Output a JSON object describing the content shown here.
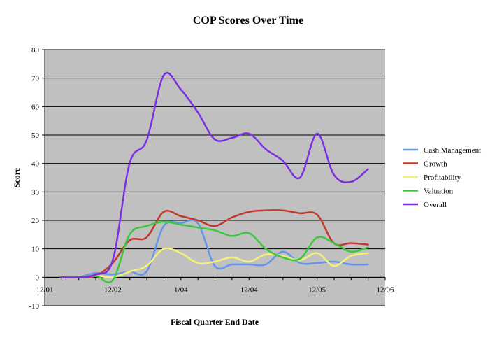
{
  "chart_data": {
    "type": "line",
    "title": "COP Scores Over Time",
    "xlabel": "Fiscal Quarter End Date",
    "ylabel": "Score",
    "x_ticks": [
      "12/01",
      "12/02",
      "1/04",
      "12/04",
      "12/05",
      "12/06"
    ],
    "ylim": [
      -10,
      80
    ],
    "y_ticks": [
      "-10",
      "0",
      "10",
      "20",
      "30",
      "40",
      "50",
      "60",
      "70",
      "80"
    ],
    "grid": true,
    "plot_background": "#c0c0c0",
    "legend": "right",
    "series": [
      {
        "name": "Cash Management",
        "color": "#6495ed",
        "points": [
          [
            "2002-03-31",
            0
          ],
          [
            "2002-06-30",
            0
          ],
          [
            "2002-09-30",
            1.5
          ],
          [
            "2002-12-31",
            1
          ],
          [
            "2003-03-31",
            2
          ],
          [
            "2003-06-30",
            2
          ],
          [
            "2003-09-30",
            18
          ],
          [
            "2003-12-31",
            19
          ],
          [
            "2004-03-31",
            19
          ],
          [
            "2004-06-30",
            4
          ],
          [
            "2004-09-30",
            4.5
          ],
          [
            "2004-12-31",
            4.5
          ],
          [
            "2005-03-31",
            4.5
          ],
          [
            "2005-06-30",
            9
          ],
          [
            "2005-09-30",
            5
          ],
          [
            "2005-12-31",
            5
          ],
          [
            "2006-03-31",
            5.5
          ],
          [
            "2006-06-30",
            4.5
          ],
          [
            "2006-09-30",
            4.5
          ]
        ]
      },
      {
        "name": "Growth",
        "color": "#c0392b",
        "points": [
          [
            "2002-03-31",
            0
          ],
          [
            "2002-06-30",
            0
          ],
          [
            "2002-09-30",
            0.5
          ],
          [
            "2002-12-31",
            5
          ],
          [
            "2003-03-31",
            13
          ],
          [
            "2003-06-30",
            14
          ],
          [
            "2003-09-30",
            23
          ],
          [
            "2003-12-31",
            21.5
          ],
          [
            "2004-03-31",
            20
          ],
          [
            "2004-06-30",
            18
          ],
          [
            "2004-09-30",
            21
          ],
          [
            "2004-12-31",
            23
          ],
          [
            "2005-03-31",
            23.5
          ],
          [
            "2005-06-30",
            23.5
          ],
          [
            "2005-09-30",
            22.5
          ],
          [
            "2005-12-31",
            22
          ],
          [
            "2006-03-31",
            12
          ],
          [
            "2006-06-30",
            12
          ],
          [
            "2006-09-30",
            11.5
          ]
        ]
      },
      {
        "name": "Profitability",
        "color": "#f5f07a",
        "points": [
          [
            "2002-03-31",
            0
          ],
          [
            "2002-06-30",
            0
          ],
          [
            "2002-09-30",
            0.5
          ],
          [
            "2002-12-31",
            0
          ],
          [
            "2003-03-31",
            2
          ],
          [
            "2003-06-30",
            4
          ],
          [
            "2003-09-30",
            10
          ],
          [
            "2003-12-31",
            8.5
          ],
          [
            "2004-03-31",
            5
          ],
          [
            "2004-06-30",
            5.5
          ],
          [
            "2004-09-30",
            7
          ],
          [
            "2004-12-31",
            5.5
          ],
          [
            "2005-03-31",
            8
          ],
          [
            "2005-06-30",
            7.5
          ],
          [
            "2005-09-30",
            6
          ],
          [
            "2005-12-31",
            8.5
          ],
          [
            "2006-03-31",
            4
          ],
          [
            "2006-06-30",
            7.5
          ],
          [
            "2006-09-30",
            8.5
          ]
        ]
      },
      {
        "name": "Valuation",
        "color": "#3cc83c",
        "points": [
          [
            "2002-03-31",
            0
          ],
          [
            "2002-06-30",
            0
          ],
          [
            "2002-09-30",
            0.5
          ],
          [
            "2002-12-31",
            -1
          ],
          [
            "2003-03-31",
            15
          ],
          [
            "2003-06-30",
            18
          ],
          [
            "2003-09-30",
            19.5
          ],
          [
            "2003-12-31",
            18.5
          ],
          [
            "2004-03-31",
            17.5
          ],
          [
            "2004-06-30",
            16.5
          ],
          [
            "2004-09-30",
            14.5
          ],
          [
            "2004-12-31",
            15.5
          ],
          [
            "2005-03-31",
            10
          ],
          [
            "2005-06-30",
            7
          ],
          [
            "2005-09-30",
            6.5
          ],
          [
            "2005-12-31",
            14
          ],
          [
            "2006-03-31",
            12
          ],
          [
            "2006-06-30",
            9
          ],
          [
            "2006-09-30",
            10.5
          ]
        ]
      },
      {
        "name": "Overall",
        "color": "#7b2fe0",
        "points": [
          [
            "2002-03-31",
            0
          ],
          [
            "2002-06-30",
            0
          ],
          [
            "2002-09-30",
            1
          ],
          [
            "2002-12-31",
            6
          ],
          [
            "2003-03-31",
            40
          ],
          [
            "2003-06-30",
            48
          ],
          [
            "2003-09-30",
            71
          ],
          [
            "2003-12-31",
            66
          ],
          [
            "2004-03-31",
            58
          ],
          [
            "2004-06-30",
            48.5
          ],
          [
            "2004-09-30",
            49
          ],
          [
            "2004-12-31",
            50.5
          ],
          [
            "2005-03-31",
            45
          ],
          [
            "2005-06-30",
            41
          ],
          [
            "2005-09-30",
            35
          ],
          [
            "2005-12-31",
            50.5
          ],
          [
            "2006-03-31",
            36
          ],
          [
            "2006-06-30",
            33.5
          ],
          [
            "2006-09-30",
            38
          ]
        ]
      }
    ]
  }
}
